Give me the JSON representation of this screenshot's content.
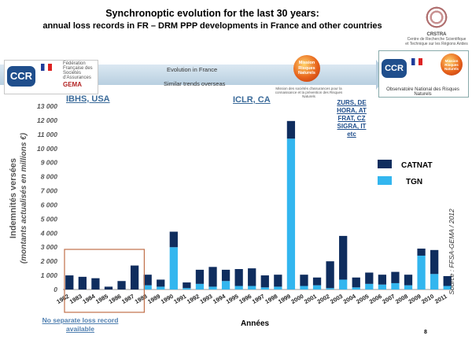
{
  "header": {
    "title": "Synchronoptic evolution for the last 30 years:",
    "subtitle": "annual loss records in FR – DRM PPP developments in France and other countries"
  },
  "logos": {
    "ccr": "CCR",
    "gema": "GEMA",
    "ffsa_text": "Fédération Française des Sociétés d'Assurances",
    "mission": "Mission Risques Naturels",
    "mission_caption": "Mission des sociétés d'assurances pour la connaissance et la prévention des Risques Naturels",
    "observatoire": "Observatoire National des Risques Naturels",
    "crstra": "CRSTRA",
    "crstra_text": "Centre de Recherche Scientifique et Technique sur les Régions Arides"
  },
  "banner": {
    "evolution": "Evolution in France",
    "similar": "Similar trends overseas"
  },
  "regions": {
    "ibhs": "IBHS, USA",
    "iclr": "ICLR, CA",
    "europe": [
      "ZURS, DE",
      "HORA, AT",
      "FRAT, CZ",
      "SIGRA, IT",
      "etc"
    ]
  },
  "note": "No separate loss record available",
  "page_number": "8",
  "colors": {
    "catnat": "#0f2d5e",
    "tgn": "#33b6ef",
    "accent_box": "#c0704a"
  },
  "chart_data": {
    "type": "bar",
    "stacked": true,
    "ylabel_line1": "Indemnités versées",
    "ylabel_line2": "(montants actualisés en millions €)",
    "xlabel": "Années",
    "source": "Source : FFSA-GEMA / 2012",
    "ylim": [
      0,
      13000
    ],
    "yticks": [
      "0",
      "1 000",
      "2 000",
      "3 000",
      "4 000",
      "5 000",
      "6 000",
      "7 000",
      "8 000",
      "9 000",
      "10 000",
      "11 000",
      "12 000",
      "13 000"
    ],
    "categories": [
      "1982",
      "1983",
      "1984",
      "1985",
      "1986",
      "1987",
      "1988",
      "1989",
      "1990",
      "1991",
      "1992",
      "1993",
      "1994",
      "1995",
      "1996",
      "1997",
      "1998",
      "1999",
      "2000",
      "2001",
      "2002",
      "2003",
      "2004",
      "2005",
      "2006",
      "2007",
      "2008",
      "2009",
      "2010",
      "2011"
    ],
    "legend": [
      "CATNAT",
      "TGN"
    ],
    "series": [
      {
        "name": "TGN",
        "values": [
          0,
          0,
          0,
          0,
          0,
          0,
          300,
          200,
          3000,
          100,
          400,
          200,
          600,
          250,
          250,
          150,
          200,
          10700,
          250,
          300,
          100,
          700,
          150,
          400,
          350,
          450,
          300,
          2400,
          1100,
          250
        ]
      },
      {
        "name": "CATNAT",
        "values": [
          1000,
          900,
          800,
          200,
          600,
          1700,
          750,
          500,
          1100,
          400,
          1000,
          1400,
          800,
          1200,
          1250,
          850,
          850,
          1250,
          800,
          550,
          1900,
          3100,
          700,
          800,
          700,
          800,
          750,
          500,
          1700,
          700
        ]
      }
    ]
  }
}
